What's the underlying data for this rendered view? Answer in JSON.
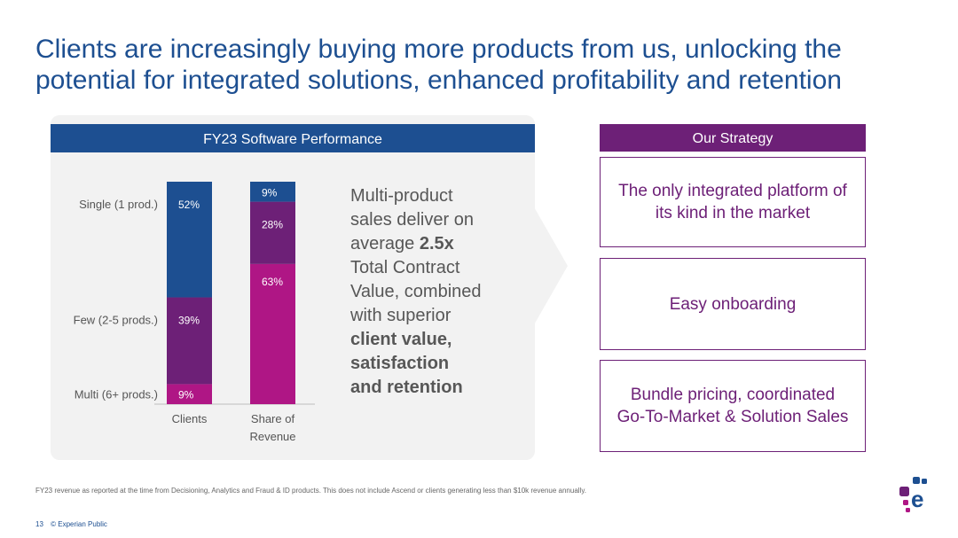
{
  "title_lines": [
    "Clients are increasingly buying more products from us, unlocking the",
    "potential for integrated solutions, enhanced profitability and retention"
  ],
  "panel_title": "FY23 Software Performance",
  "callout": {
    "line1": "Multi-product",
    "line2": "sales deliver on",
    "line3_prefix": "average ",
    "line3_bold": "2.5x",
    "line4": "Total Contract",
    "line5": "Value, combined",
    "line6": "with superior",
    "bold1": "client value,",
    "bold2": "satisfaction",
    "bold3": "and retention"
  },
  "strategy": {
    "header": "Our Strategy",
    "items": [
      {
        "line1": "The only integrated platform of",
        "line2": "its kind in the market"
      },
      {
        "line1": "Easy onboarding",
        "line2": ""
      },
      {
        "line1": "Bundle pricing, coordinated",
        "line2": "Go-To-Market & Solution Sales"
      }
    ]
  },
  "footnote": "FY23 revenue as reported at the time from Decisioning, Analytics and Fraud & ID products. This does not include Ascend or clients generating less than $10k revenue annually.",
  "footer": {
    "page": "13",
    "label": "© Experian Public"
  },
  "colors": {
    "blue": "#1d4f91",
    "purple": "#6d2077",
    "magenta": "#af1685"
  },
  "chart_data": {
    "type": "bar",
    "stacked": true,
    "percent": true,
    "categories": [
      "Clients",
      "Share of Revenue"
    ],
    "category_lines": [
      [
        "Clients"
      ],
      [
        "Share of",
        "Revenue"
      ]
    ],
    "series": [
      {
        "name": "Multi (6+ prods.)",
        "values": [
          9,
          63
        ],
        "color": "#af1685"
      },
      {
        "name": "Few (2-5 prods.)",
        "values": [
          39,
          28
        ],
        "color": "#6d2077"
      },
      {
        "name": "Single (1 prod.)",
        "values": [
          52,
          9
        ],
        "color": "#1d4f91"
      }
    ],
    "row_labels": [
      {
        "text": "Single (1 prod.)",
        "series": 2
      },
      {
        "text": "Few (2-5 prods.)",
        "series": 1
      },
      {
        "text": "Multi (6+ prods.)",
        "series": 0
      }
    ],
    "ylim": [
      0,
      100
    ]
  }
}
